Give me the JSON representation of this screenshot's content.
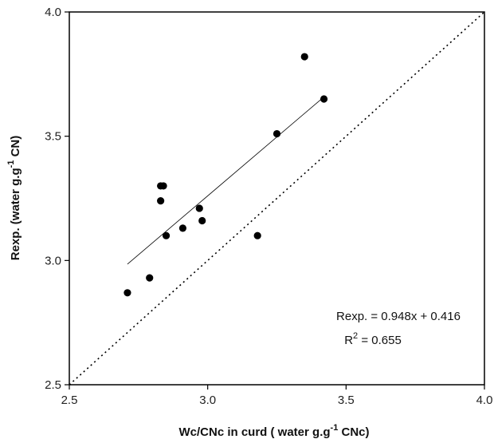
{
  "chart_data": {
    "type": "scatter",
    "title": "",
    "xlabel": {
      "main": "Wc/CNc in curd ( water g.g",
      "sup": "-1",
      "tail": " CNc)"
    },
    "ylabel": {
      "main": "Rexp. (water g.g",
      "sup": "-1",
      "tail": " CN)"
    },
    "xlim": [
      2.5,
      4.0
    ],
    "ylim": [
      2.5,
      4.0
    ],
    "xticks": [
      2.5,
      3.0,
      3.5,
      4.0
    ],
    "yticks": [
      2.5,
      3.0,
      3.5,
      4.0
    ],
    "xtick_labels": [
      "2.5",
      "3.0",
      "3.5",
      "4.0"
    ],
    "ytick_labels": [
      "2.5",
      "3.0",
      "3.5",
      "4.0"
    ],
    "grid": false,
    "series": [
      {
        "type": "scatter",
        "x": [
          2.71,
          2.79,
          2.83,
          2.83,
          2.84,
          2.85,
          2.91,
          2.97,
          2.98,
          3.18,
          3.25,
          3.35,
          3.42
        ],
        "y": [
          2.87,
          2.93,
          3.3,
          3.24,
          3.3,
          3.1,
          3.13,
          3.21,
          3.16,
          3.1,
          3.51,
          3.82,
          3.65
        ],
        "color": "#000000"
      },
      {
        "type": "regression-line",
        "slope": 0.948,
        "intercept": 0.416,
        "x_range": [
          2.71,
          3.42
        ],
        "color": "#000000"
      },
      {
        "type": "identity-line",
        "style": "dotted",
        "x_range": [
          2.5,
          4.0
        ],
        "color": "#000000"
      }
    ],
    "annotations": {
      "equation": "Rexp. = 0.948x + 0.416",
      "r2_prefix": "R",
      "r2_sup": "2",
      "r2_value": " = 0.655"
    }
  }
}
